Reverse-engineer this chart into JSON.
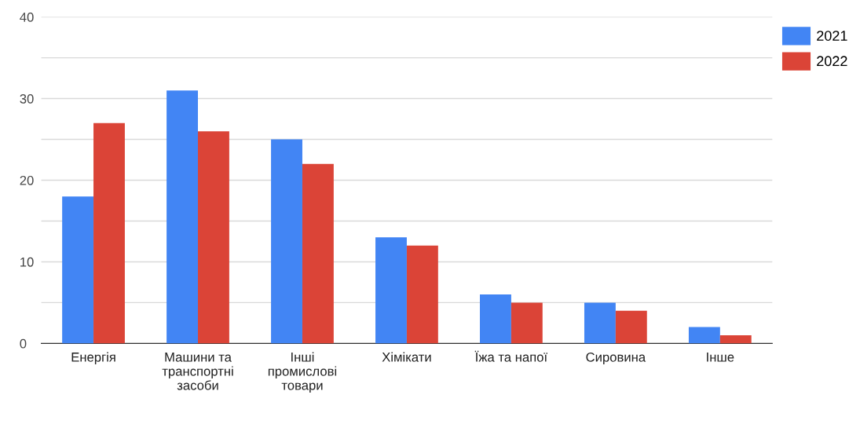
{
  "chart_data": {
    "type": "bar",
    "categories": [
      "Енергія",
      "Машини та\nтранспортні\nзасоби",
      "Інші\nпромислові\nтовари",
      "Хімікати",
      "Їжа та напої",
      "Сировина",
      "Інше"
    ],
    "series": [
      {
        "name": "2021",
        "color": "#4285f4",
        "values": [
          18,
          31,
          25,
          13,
          6,
          5,
          2
        ]
      },
      {
        "name": "2022",
        "color": "#db4437",
        "values": [
          27,
          26,
          22,
          12,
          5,
          4,
          1
        ]
      }
    ],
    "ylim": [
      0,
      40
    ],
    "yticks": [
      0,
      {
        "value": 5,
        "label": null
      },
      10,
      {
        "value": 15,
        "label": null
      },
      20,
      {
        "value": 25,
        "label": null
      },
      30,
      {
        "value": 35,
        "label": null
      },
      40
    ],
    "grid": "y",
    "legend": "top right"
  }
}
